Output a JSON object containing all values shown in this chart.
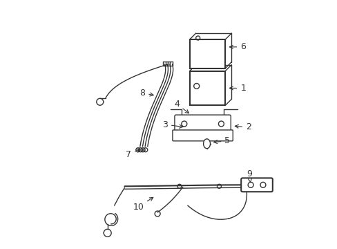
{
  "background_color": "#ffffff",
  "line_color": "#333333",
  "line_width": 1.5,
  "label_fontsize": 9,
  "fig_width": 4.89,
  "fig_height": 3.6,
  "dpi": 100
}
